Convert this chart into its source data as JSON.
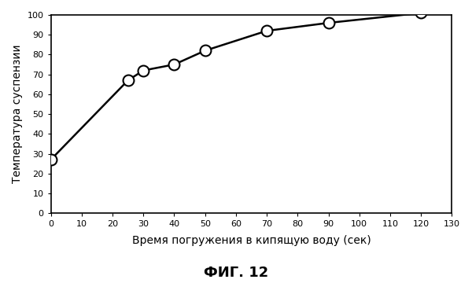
{
  "x_data": [
    0,
    25,
    30,
    40,
    50,
    70,
    90,
    120
  ],
  "y_data": [
    27,
    67,
    72,
    75,
    82,
    92,
    96,
    101
  ],
  "xlabel": "Время погружения в кипящую воду (сек)",
  "ylabel": "Температура суспензии",
  "title": "ФИГ. 12",
  "xlim": [
    0,
    130
  ],
  "ylim": [
    0,
    100
  ],
  "xticks": [
    0,
    10,
    20,
    30,
    40,
    50,
    60,
    70,
    80,
    90,
    100,
    110,
    120,
    130
  ],
  "yticks": [
    0,
    10,
    20,
    30,
    40,
    50,
    60,
    70,
    80,
    90,
    100
  ],
  "line_color": "#000000",
  "marker_facecolor": "#ffffff",
  "marker_edgecolor": "#000000",
  "marker_size": 10,
  "marker_edge_width": 1.5,
  "line_width": 1.8,
  "background_color": "#ffffff",
  "tick_labelsize": 8,
  "xlabel_fontsize": 10,
  "ylabel_fontsize": 10,
  "title_fontsize": 13
}
